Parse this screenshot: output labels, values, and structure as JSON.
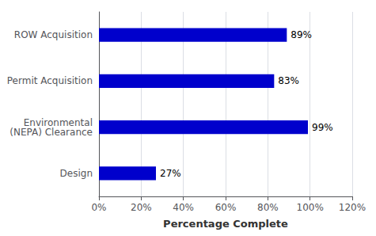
{
  "chart_data": {
    "type": "bar",
    "orientation": "horizontal",
    "categories": [
      "ROW Acquisition",
      "Permit Acquisition",
      "Environmental\n(NEPA) Clearance",
      "Design"
    ],
    "values": [
      89,
      83,
      99,
      27
    ],
    "value_labels": [
      "89%",
      "83%",
      "99%",
      "27%"
    ],
    "data_labels": true,
    "color": "#0000CC",
    "xlabel": "Percentage Complete",
    "xlim": [
      0,
      120
    ],
    "xticks": [
      {
        "value": 0,
        "label": "0%"
      },
      {
        "value": 20,
        "label": "20%"
      },
      {
        "value": 40,
        "label": "40%"
      },
      {
        "value": 60,
        "label": "60%"
      },
      {
        "value": 80,
        "label": "80%"
      },
      {
        "value": 100,
        "label": "100%"
      },
      {
        "value": 120,
        "label": "120%"
      }
    ],
    "grid": true
  }
}
